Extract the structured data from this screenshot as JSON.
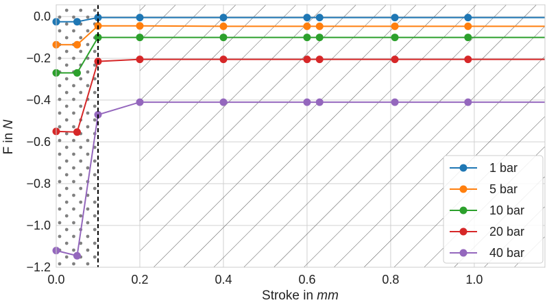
{
  "chart_data": {
    "type": "line",
    "title": "",
    "xlabel_prefix": "Stroke in ",
    "xlabel_unit": "mm",
    "ylabel_prefix": "F in ",
    "ylabel_unit": "N",
    "xlim": [
      0,
      1.169
    ],
    "ylim": [
      -1.2,
      0.056
    ],
    "xticks": [
      0.0,
      0.2,
      0.4,
      0.6,
      0.8,
      1.0
    ],
    "xtick_labels": [
      "0.0",
      "0.2",
      "0.4",
      "0.6",
      "0.8",
      "1.0"
    ],
    "yticks": [
      0.0,
      -0.2,
      -0.4,
      -0.6,
      -0.8,
      -1.0,
      -1.2
    ],
    "ytick_labels": [
      "0.0",
      "−0.2",
      "−0.4",
      "−0.6",
      "−0.8",
      "−1.0",
      "−1.2"
    ],
    "grid": true,
    "legend_position": "bottom-right",
    "vertical_line_x": 0.1,
    "dotted_region": [
      0,
      0.1
    ],
    "hatched_region": [
      0.2,
      1.169
    ],
    "x": [
      0,
      0.05,
      0.1,
      0.2,
      0.4,
      0.6,
      0.63,
      0.81,
      0.985,
      1.169
    ],
    "marker_count": 9,
    "series": [
      {
        "name": "1 bar",
        "color": "#1f77b4",
        "values": [
          -0.025,
          -0.025,
          -0.005,
          -0.005,
          -0.005,
          -0.005,
          -0.005,
          -0.005,
          -0.005,
          -0.005
        ]
      },
      {
        "name": "5 bar",
        "color": "#ff7f0e",
        "values": [
          -0.135,
          -0.135,
          -0.045,
          -0.045,
          -0.047,
          -0.047,
          -0.047,
          -0.047,
          -0.047,
          -0.047
        ]
      },
      {
        "name": "10 bar",
        "color": "#2ca02c",
        "values": [
          -0.27,
          -0.27,
          -0.1,
          -0.1,
          -0.1,
          -0.1,
          -0.1,
          -0.1,
          -0.1,
          -0.1
        ]
      },
      {
        "name": "20 bar",
        "color": "#d62728",
        "values": [
          -0.55,
          -0.553,
          -0.215,
          -0.205,
          -0.205,
          -0.205,
          -0.205,
          -0.205,
          -0.205,
          -0.205
        ]
      },
      {
        "name": "40 bar",
        "color": "#9467bd",
        "values": [
          -1.12,
          -1.145,
          -0.47,
          -0.41,
          -0.41,
          -0.41,
          -0.41,
          -0.41,
          -0.41,
          -0.41
        ]
      }
    ]
  }
}
